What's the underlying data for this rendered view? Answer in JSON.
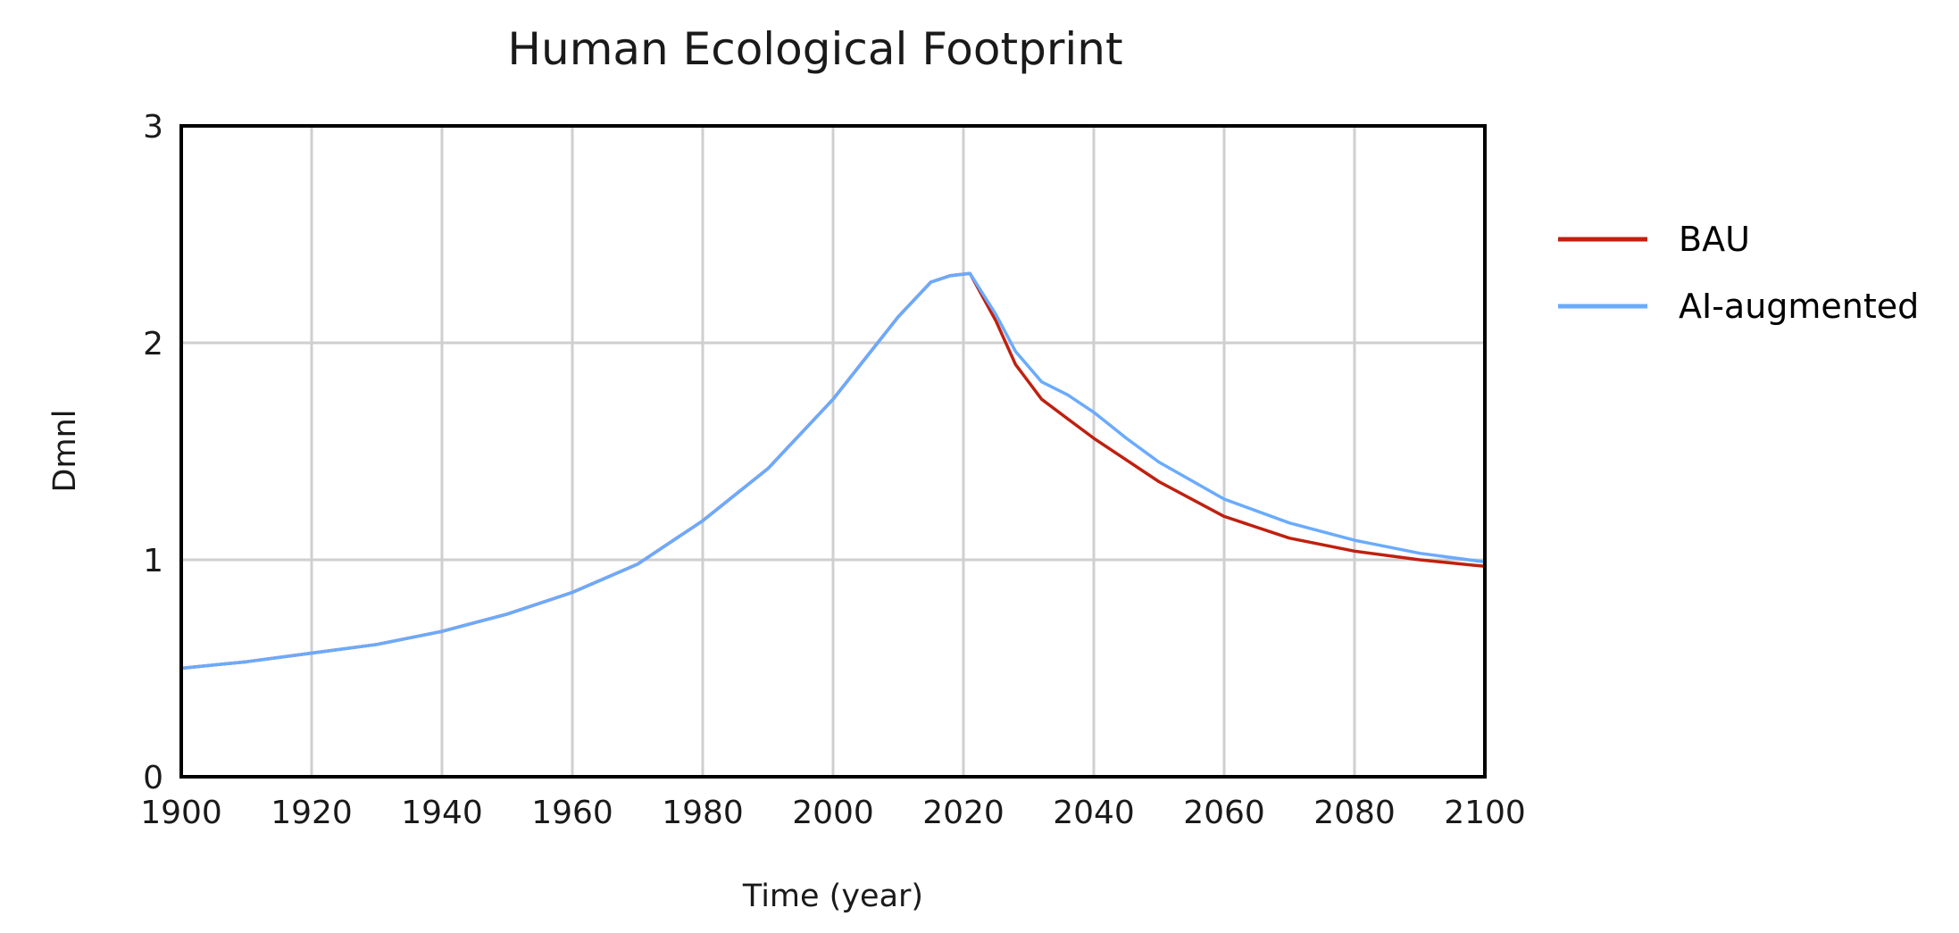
{
  "chart_data": {
    "type": "line",
    "title": "Human Ecological Footprint",
    "xlabel": "Time (year)",
    "ylabel": "Dmnl",
    "xlim": [
      1900,
      2100
    ],
    "ylim": [
      0,
      3
    ],
    "x_ticks": [
      1900,
      1920,
      1940,
      1960,
      1980,
      2000,
      2020,
      2040,
      2060,
      2080,
      2100
    ],
    "y_ticks": [
      0,
      1,
      2,
      3
    ],
    "grid": true,
    "legend_position": "right",
    "series": [
      {
        "name": "BAU",
        "color": "#c0200f",
        "x": [
          1900,
          1910,
          1920,
          1930,
          1940,
          1950,
          1960,
          1970,
          1980,
          1990,
          2000,
          2005,
          2010,
          2015,
          2018,
          2021,
          2025,
          2028,
          2032,
          2036,
          2040,
          2045,
          2050,
          2060,
          2070,
          2080,
          2090,
          2100
        ],
        "y": [
          0.5,
          0.53,
          0.57,
          0.61,
          0.67,
          0.75,
          0.85,
          0.98,
          1.18,
          1.42,
          1.74,
          1.93,
          2.12,
          2.28,
          2.31,
          2.32,
          2.1,
          1.9,
          1.74,
          1.65,
          1.56,
          1.46,
          1.36,
          1.2,
          1.1,
          1.04,
          1.0,
          0.97
        ]
      },
      {
        "name": "AI-augmented",
        "color": "#6aabff",
        "x": [
          1900,
          1910,
          1920,
          1930,
          1940,
          1950,
          1960,
          1970,
          1980,
          1990,
          2000,
          2005,
          2010,
          2015,
          2018,
          2021,
          2025,
          2028,
          2032,
          2036,
          2040,
          2045,
          2050,
          2060,
          2070,
          2080,
          2090,
          2100
        ],
        "y": [
          0.5,
          0.53,
          0.57,
          0.61,
          0.67,
          0.75,
          0.85,
          0.98,
          1.18,
          1.42,
          1.74,
          1.93,
          2.12,
          2.28,
          2.31,
          2.32,
          2.13,
          1.96,
          1.82,
          1.76,
          1.68,
          1.56,
          1.45,
          1.28,
          1.17,
          1.09,
          1.03,
          0.99
        ]
      }
    ]
  }
}
